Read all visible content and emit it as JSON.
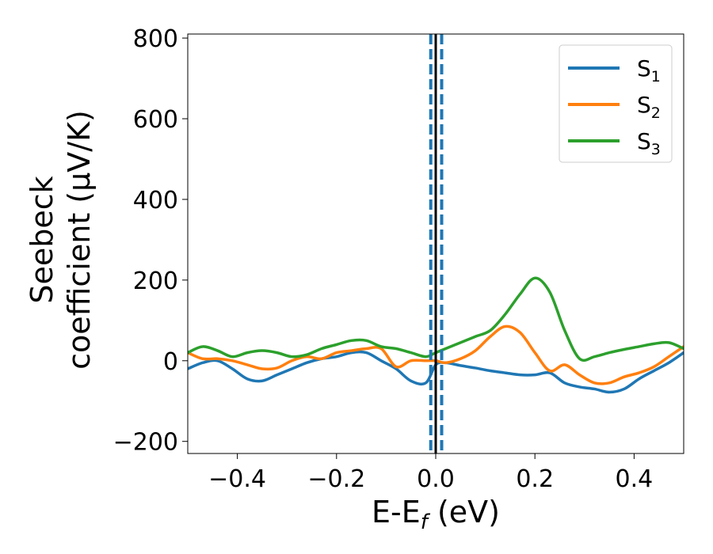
{
  "chart_data": {
    "type": "line",
    "title": "",
    "xlabel": {
      "base": "E-E",
      "sub": "f",
      "unit": " (eV)"
    },
    "ylabel": {
      "line1": "Seebeck",
      "line2": "coefficient  (μV/K)"
    },
    "xlim": [
      -0.5,
      0.5
    ],
    "ylim": [
      -230,
      810
    ],
    "xticks": [
      -0.4,
      -0.2,
      0.0,
      0.2,
      0.4
    ],
    "xtick_labels": [
      "−0.4",
      "−0.2",
      "0.0",
      "0.2",
      "0.4"
    ],
    "yticks": [
      -200,
      0,
      200,
      400,
      600,
      800
    ],
    "ytick_labels": [
      "−200",
      "0",
      "200",
      "400",
      "600",
      "800"
    ],
    "grid": false,
    "legend_position": "top-right",
    "vlines": [
      {
        "x": 0.0,
        "style": "solid",
        "color": "#000000"
      },
      {
        "x": -0.01,
        "style": "dashed",
        "color": "#1f77b4"
      },
      {
        "x": 0.012,
        "style": "dashed",
        "color": "#1f77b4"
      }
    ],
    "series": [
      {
        "name": "S",
        "sub": "1",
        "color": "#1f77b4",
        "x": [
          -0.5,
          -0.47,
          -0.44,
          -0.41,
          -0.38,
          -0.35,
          -0.32,
          -0.29,
          -0.26,
          -0.23,
          -0.2,
          -0.17,
          -0.14,
          -0.11,
          -0.08,
          -0.05,
          -0.02,
          0.0,
          0.02,
          0.05,
          0.08,
          0.11,
          0.14,
          0.17,
          0.2,
          0.23,
          0.26,
          0.29,
          0.32,
          0.35,
          0.38,
          0.41,
          0.44,
          0.47,
          0.5
        ],
        "y": [
          -20,
          -5,
          0,
          -20,
          -45,
          -50,
          -35,
          -20,
          -5,
          5,
          10,
          20,
          20,
          0,
          -20,
          -50,
          -55,
          -10,
          -5,
          -12,
          -18,
          -25,
          -30,
          -35,
          -35,
          -30,
          -55,
          -65,
          -70,
          -78,
          -70,
          -45,
          -25,
          -5,
          20
        ]
      },
      {
        "name": "S",
        "sub": "2",
        "color": "#ff7f0e",
        "x": [
          -0.5,
          -0.47,
          -0.44,
          -0.41,
          -0.38,
          -0.35,
          -0.32,
          -0.29,
          -0.26,
          -0.23,
          -0.2,
          -0.17,
          -0.14,
          -0.11,
          -0.08,
          -0.05,
          -0.02,
          0.0,
          0.02,
          0.05,
          0.08,
          0.11,
          0.14,
          0.17,
          0.2,
          0.23,
          0.26,
          0.29,
          0.32,
          0.35,
          0.38,
          0.41,
          0.44,
          0.47,
          0.5
        ],
        "y": [
          20,
          5,
          5,
          0,
          -10,
          -20,
          -18,
          0,
          10,
          5,
          20,
          25,
          30,
          30,
          -15,
          0,
          0,
          0,
          -5,
          5,
          25,
          60,
          85,
          70,
          20,
          -25,
          -10,
          -35,
          -55,
          -55,
          -40,
          -30,
          -15,
          10,
          35
        ]
      },
      {
        "name": "S",
        "sub": "3",
        "color": "#2ca02c",
        "x": [
          -0.5,
          -0.47,
          -0.44,
          -0.41,
          -0.38,
          -0.35,
          -0.32,
          -0.29,
          -0.26,
          -0.23,
          -0.2,
          -0.17,
          -0.14,
          -0.11,
          -0.08,
          -0.05,
          -0.02,
          0.0,
          0.02,
          0.05,
          0.08,
          0.11,
          0.14,
          0.17,
          0.2,
          0.23,
          0.26,
          0.29,
          0.32,
          0.35,
          0.38,
          0.41,
          0.44,
          0.47,
          0.5
        ],
        "y": [
          20,
          35,
          25,
          10,
          20,
          25,
          20,
          10,
          15,
          30,
          40,
          50,
          50,
          35,
          30,
          20,
          10,
          20,
          30,
          45,
          60,
          75,
          115,
          165,
          205,
          170,
          75,
          5,
          10,
          20,
          28,
          35,
          42,
          45,
          30
        ]
      }
    ]
  }
}
